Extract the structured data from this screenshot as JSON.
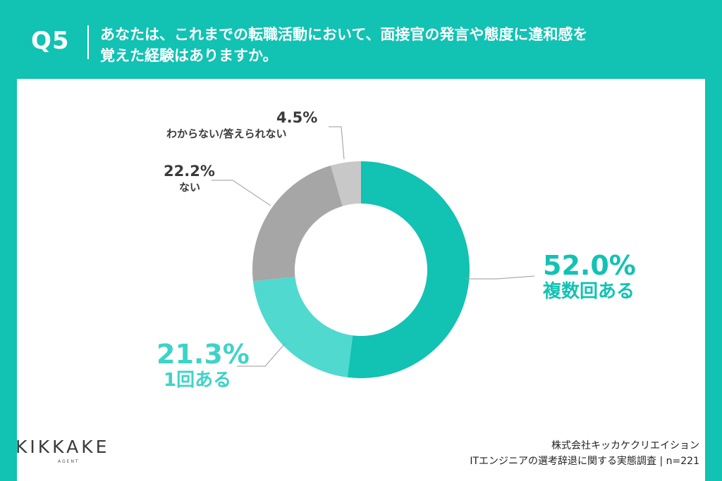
{
  "header": {
    "question_number": "Q5",
    "question_line1": "あなたは、これまでの転職活動において、面接官の発言や態度に違和感を",
    "question_line2": "覚えた経験はありますか。"
  },
  "chart_data": {
    "type": "pie",
    "donut": true,
    "start_angle": "12 o'clock, clockwise",
    "slices": [
      {
        "label": "複数回ある",
        "value": 52.0,
        "display": "52.0%",
        "color": "#12c2b3"
      },
      {
        "label": "1回ある",
        "value": 21.3,
        "display": "21.3%",
        "color": "#4fd9cf"
      },
      {
        "label": "ない",
        "value": 22.2,
        "display": "22.2%",
        "color": "#a6a6a6"
      },
      {
        "label": "わからない/答えられない",
        "value": 4.5,
        "display": "4.5%",
        "color": "#c8c8c8"
      }
    ]
  },
  "footer": {
    "logo": "KIKKAKE",
    "logo_sub": "AGENT",
    "source_line1": "株式会社キッカケクリエイション",
    "source_line2": "ITエンジニアの選考辞退に関する実態調査 | n=221"
  }
}
